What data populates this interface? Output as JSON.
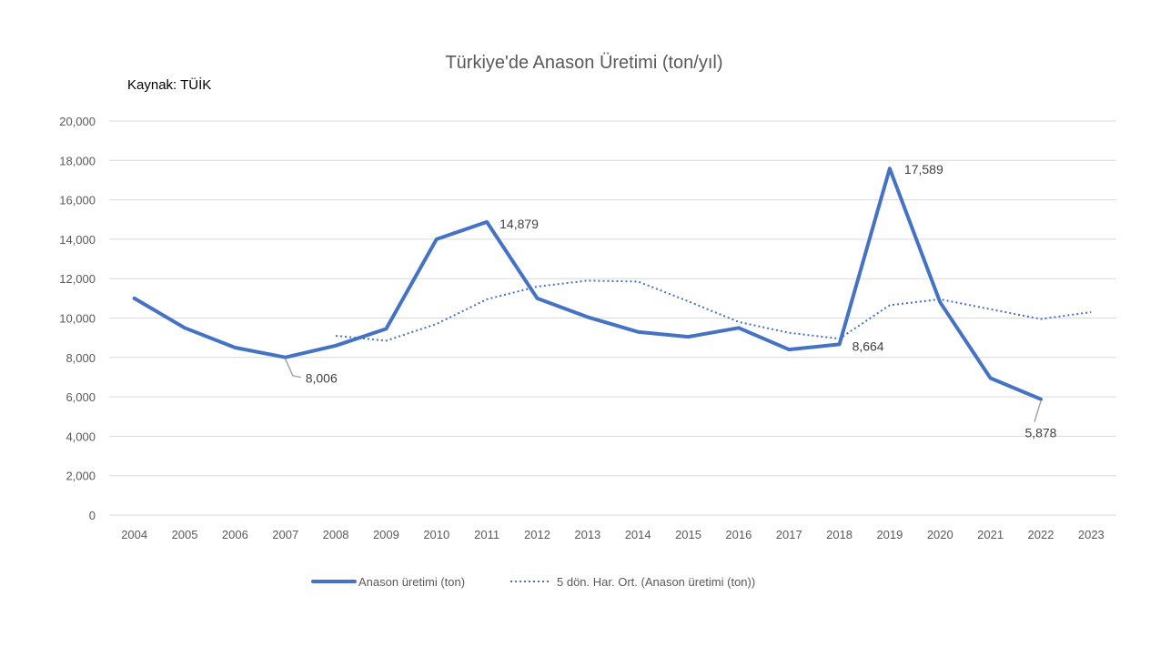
{
  "chart_data": {
    "type": "line",
    "title": "Türkiye'de Anason Üretimi (ton/yıl)",
    "source_note": "Kaynak: TÜİK",
    "xlabel": "",
    "ylabel": "",
    "ylim": [
      0,
      20000
    ],
    "yticks": [
      0,
      2000,
      4000,
      6000,
      8000,
      10000,
      12000,
      14000,
      16000,
      18000,
      20000
    ],
    "ytick_labels": [
      "0",
      "2,000",
      "4,000",
      "6,000",
      "8,000",
      "10,000",
      "12,000",
      "14,000",
      "16,000",
      "18,000",
      "20,000"
    ],
    "grid": true,
    "legend_position": "bottom",
    "categories": [
      "2004",
      "2005",
      "2006",
      "2007",
      "2008",
      "2009",
      "2010",
      "2011",
      "2012",
      "2013",
      "2014",
      "2015",
      "2016",
      "2017",
      "2018",
      "2019",
      "2020",
      "2021",
      "2022",
      "2023"
    ],
    "series": [
      {
        "name": "Anason üretimi (ton)",
        "style": "solid",
        "color": "#4472C4",
        "values": [
          11000,
          9500,
          8500,
          8006,
          8600,
          9450,
          14000,
          14879,
          11000,
          10050,
          9300,
          9050,
          9500,
          8400,
          8664,
          17589,
          10800,
          6950,
          5878,
          null
        ]
      },
      {
        "name": "5 dön. Har. Ort. (Anason üretimi (ton))",
        "style": "dotted",
        "color": "#4472C4",
        "values": [
          null,
          null,
          null,
          null,
          9100,
          8850,
          9700,
          10950,
          11600,
          11900,
          11850,
          10850,
          9800,
          9250,
          8950,
          10650,
          10950,
          10450,
          9950,
          10300
        ]
      }
    ],
    "annotations": [
      {
        "category": "2007",
        "value": 8006,
        "label": "8,006"
      },
      {
        "category": "2011",
        "value": 14879,
        "label": "14,879"
      },
      {
        "category": "2018",
        "value": 8664,
        "label": "8,664"
      },
      {
        "category": "2019",
        "value": 17589,
        "label": "17,589"
      },
      {
        "category": "2022",
        "value": 5878,
        "label": "5,878"
      }
    ]
  }
}
